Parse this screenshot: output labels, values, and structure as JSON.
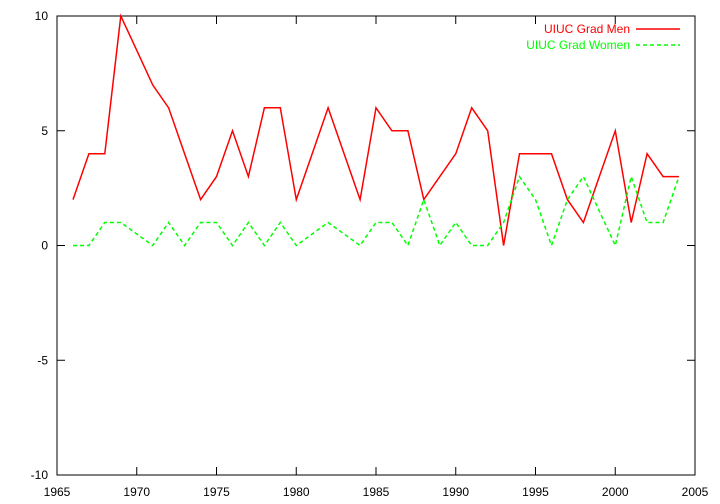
{
  "chart_data": {
    "type": "line",
    "title": "",
    "xlabel": "",
    "ylabel": "",
    "xlim": [
      1965,
      2005
    ],
    "ylim": [
      -10,
      10
    ],
    "xticks": [
      1965,
      1970,
      1975,
      1980,
      1985,
      1990,
      1995,
      2000,
      2005
    ],
    "yticks": [
      -10,
      -5,
      0,
      5,
      10
    ],
    "grid": false,
    "legend_position": "top-right",
    "x": [
      1966,
      1967,
      1968,
      1969,
      1970,
      1971,
      1972,
      1973,
      1974,
      1975,
      1976,
      1977,
      1978,
      1979,
      1980,
      1981,
      1982,
      1983,
      1984,
      1985,
      1986,
      1987,
      1988,
      1989,
      1990,
      1991,
      1992,
      1993,
      1994,
      1995,
      1996,
      1997,
      1998,
      1999,
      2000,
      2001,
      2002,
      2003,
      2004
    ],
    "series": [
      {
        "name": "UIUC Grad Men",
        "color": "#ff0000",
        "dash": "solid",
        "values": [
          2,
          4,
          4,
          10,
          8.5,
          7,
          6,
          4,
          2,
          3,
          5,
          3,
          6,
          6,
          2,
          4,
          6,
          4,
          2,
          6,
          5,
          5,
          2,
          3,
          4,
          6,
          5,
          0,
          4,
          4,
          4,
          2,
          1,
          3,
          5,
          1,
          4,
          3,
          3
        ]
      },
      {
        "name": "UIUC Grad Women",
        "color": "#00ff00",
        "dash": "dashed",
        "values": [
          0,
          0,
          1,
          1,
          0.5,
          0,
          1,
          0,
          1,
          1,
          0,
          1,
          0,
          1,
          0,
          0.5,
          1,
          0.5,
          0,
          1,
          1,
          0,
          2,
          0,
          1,
          0,
          0,
          1,
          3,
          2,
          0,
          2,
          3,
          1.5,
          0,
          3,
          1,
          1,
          3
        ]
      }
    ]
  }
}
